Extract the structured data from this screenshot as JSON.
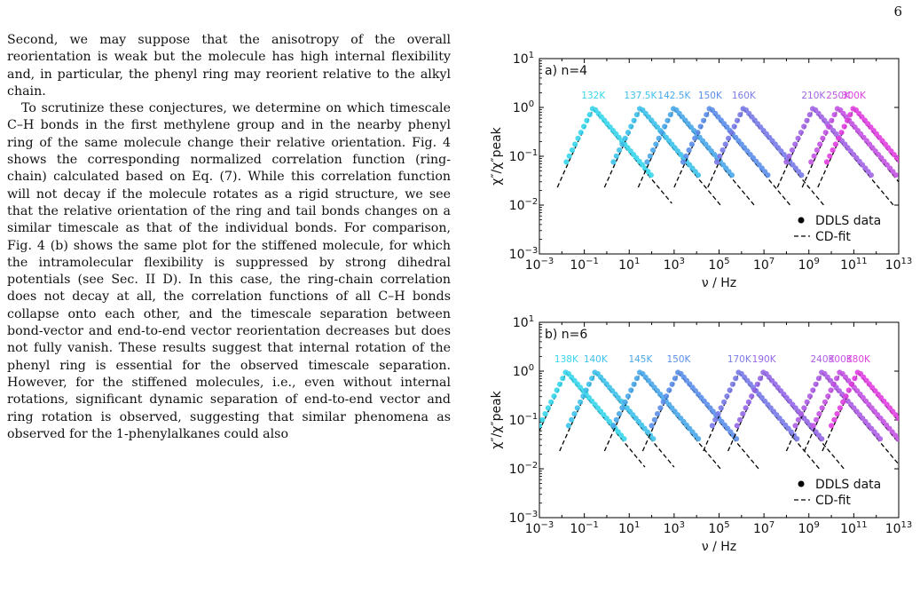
{
  "page": {
    "number": "6"
  },
  "text": {
    "paragraphs": [
      "Second, we may suppose that the anisotropy of the overall reorientation is weak but the molecule has high internal flexibility and, in particular, the phenyl ring may reorient relative to the alkyl chain.",
      "To scrutinize these conjectures, we determine on which timescale C–H bonds in the first methylene group and in the nearby phenyl ring of the same molecule change their relative orientation. Fig. 4 shows the corresponding normalized correlation function (ring-chain) calculated based on Eq. (7). While this correlation function will not decay if the molecule rotates as a rigid structure, we see that the relative orientation of the ring and tail bonds changes on a similar timescale as that of the individual bonds. For comparison, Fig. 4 (b) shows the same plot for the stiffened molecule, for which the intramolecular flexibility is suppressed by strong dihedral potentials (see Sec. II D). In this case, the ring-chain correlation does not decay at all, the correlation functions of all C–H bonds collapse onto each other, and the timescale separation between bond-vector and end-to-end vector reorientation decreases but does not fully vanish. These results suggest that internal rotation of the phenyl ring is essential for the observed timescale separation. However, for the stiffened molecules, i.e., even without internal rotations, significant dynamic separation of end-to-end vector and ring rotation is observed, suggesting that similar phenomena as observed for the 1-phenylalkanes could also"
    ]
  },
  "chart_data": [
    {
      "type": "line",
      "panel_label": "a) n=4",
      "xlabel": "ν / Hz",
      "ylabel": "χ″/χ″peak",
      "x_scale": "log",
      "y_scale": "log",
      "xlim_exp": [
        -3,
        13
      ],
      "ylim_exp": [
        -3,
        1
      ],
      "xtick_exps": [
        -3,
        -1,
        1,
        3,
        5,
        7,
        9,
        11,
        13
      ],
      "ytick_exps": [
        -3,
        -2,
        -1,
        0,
        1
      ],
      "legend": {
        "position": "bottom-right",
        "entries": [
          "DDLS data",
          "CD-fit"
        ]
      },
      "series": [
        {
          "name": "132K",
          "peak_log_nu": -0.6,
          "color": "#38d6ec"
        },
        {
          "name": "137.5K",
          "peak_log_nu": 1.5,
          "color": "#3ec1eb"
        },
        {
          "name": "142.5K",
          "peak_log_nu": 3.0,
          "color": "#4aa8ea"
        },
        {
          "name": "150K",
          "peak_log_nu": 4.6,
          "color": "#5b8ee9"
        },
        {
          "name": "160K",
          "peak_log_nu": 6.1,
          "color": "#7a7be8"
        },
        {
          "name": "210K",
          "peak_log_nu": 9.2,
          "color": "#a165e6"
        },
        {
          "name": "250K",
          "peak_log_nu": 10.3,
          "color": "#c454e4"
        },
        {
          "name": "300K",
          "peak_log_nu": 11.0,
          "color": "#e040e0"
        }
      ]
    },
    {
      "type": "line",
      "panel_label": "b) n=6",
      "xlabel": "ν / Hz",
      "ylabel": "χ″/χ″peak",
      "x_scale": "log",
      "y_scale": "log",
      "xlim_exp": [
        -3,
        13
      ],
      "ylim_exp": [
        -3,
        1
      ],
      "xtick_exps": [
        -3,
        -1,
        1,
        3,
        5,
        7,
        9,
        11,
        13
      ],
      "ytick_exps": [
        -3,
        -2,
        -1,
        0,
        1
      ],
      "legend": {
        "position": "bottom-right",
        "entries": [
          "DDLS data",
          "CD-fit"
        ]
      },
      "series": [
        {
          "name": "138K",
          "peak_log_nu": -1.8,
          "color": "#38d6ec"
        },
        {
          "name": "140K",
          "peak_log_nu": -0.5,
          "color": "#3ec1eb"
        },
        {
          "name": "145K",
          "peak_log_nu": 1.5,
          "color": "#4aa8ea"
        },
        {
          "name": "150K",
          "peak_log_nu": 3.2,
          "color": "#5b8ee9"
        },
        {
          "name": "170K",
          "peak_log_nu": 5.9,
          "color": "#7a7be8"
        },
        {
          "name": "190K",
          "peak_log_nu": 7.0,
          "color": "#9468e7"
        },
        {
          "name": "240K",
          "peak_log_nu": 9.6,
          "color": "#ad5ee5"
        },
        {
          "name": "300K",
          "peak_log_nu": 10.4,
          "color": "#c454e4"
        },
        {
          "name": "380K",
          "peak_log_nu": 11.2,
          "color": "#e040e0"
        }
      ]
    }
  ]
}
